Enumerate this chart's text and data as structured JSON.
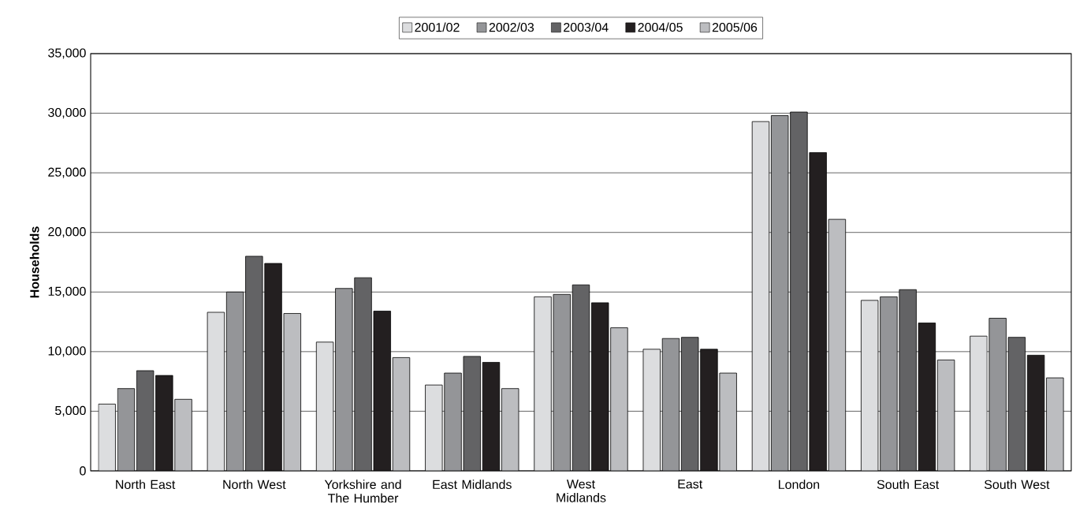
{
  "chart_data": {
    "type": "bar",
    "ylabel": "Households",
    "categories": [
      "North East",
      "North West",
      "Yorkshire and The Humber",
      "East Midlands",
      "West Midlands",
      "East",
      "London",
      "South East",
      "South West"
    ],
    "series": [
      {
        "name": "2001/02",
        "color": "#dcdddf",
        "values": [
          5600,
          13300,
          10800,
          7200,
          14600,
          10200,
          29300,
          14300,
          11300
        ]
      },
      {
        "name": "2002/03",
        "color": "#949598",
        "values": [
          6900,
          15000,
          15300,
          8200,
          14800,
          11100,
          29800,
          14600,
          12800
        ]
      },
      {
        "name": "2003/04",
        "color": "#636365",
        "values": [
          8400,
          18000,
          16200,
          9600,
          15600,
          11200,
          30100,
          15200,
          11200
        ]
      },
      {
        "name": "2004/05",
        "color": "#231f20",
        "values": [
          8000,
          17400,
          13400,
          9100,
          14100,
          10200,
          26700,
          12400,
          9700
        ]
      },
      {
        "name": "2005/06",
        "color": "#bcbdc0",
        "values": [
          6000,
          13200,
          9500,
          6900,
          12000,
          8200,
          21100,
          9300,
          7800
        ]
      }
    ],
    "ylim": [
      0,
      35000
    ],
    "yticks": [
      {
        "value": 0,
        "label": "0"
      },
      {
        "value": 5000,
        "label": "5,000"
      },
      {
        "value": 10000,
        "label": "10,000"
      },
      {
        "value": 15000,
        "label": "15,000"
      },
      {
        "value": 20000,
        "label": "20,000"
      },
      {
        "value": 25000,
        "label": "25,000"
      },
      {
        "value": 30000,
        "label": "30,000"
      },
      {
        "value": 35000,
        "label": "35,000"
      }
    ],
    "grid": "y",
    "legend": "top"
  }
}
